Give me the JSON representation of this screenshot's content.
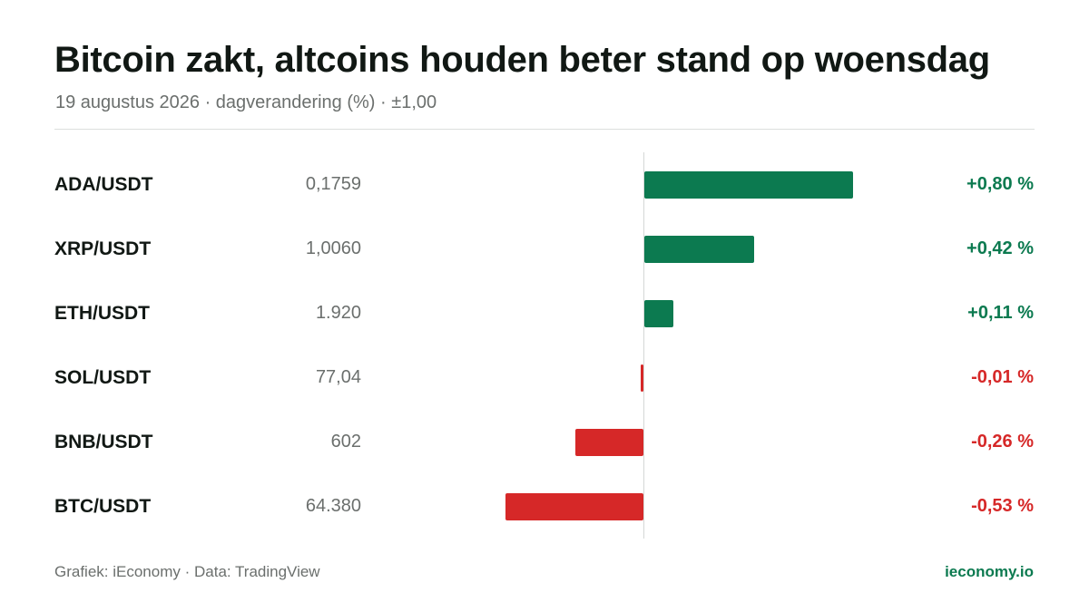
{
  "title": "Bitcoin zakt, altcoins houden beter stand op woensdag",
  "subtitle": "19 augustus 2026 · dagverandering (%) · ±1,00",
  "footer": {
    "credit": "Grafiek: iEconomy · Data: TradingView",
    "site": "ieconomy.io"
  },
  "colors": {
    "positive": "#0c7a50",
    "negative": "#d62828"
  },
  "chart_data": {
    "type": "bar",
    "orientation": "horizontal",
    "title": "Bitcoin zakt, altcoins houden beter stand op woensdag",
    "subtitle": "19 augustus 2026 · dagverandering (%) · ±1,00",
    "xlim": [
      -1.0,
      1.0
    ],
    "grid": false,
    "categories": [
      "ADA/USDT",
      "XRP/USDT",
      "ETH/USDT",
      "SOL/USDT",
      "BNB/USDT",
      "BTC/USDT"
    ],
    "prices": [
      "0,1759",
      "1,0060",
      "1.920",
      "77,04",
      "602",
      "64.380"
    ],
    "values": [
      0.8,
      0.42,
      0.11,
      -0.01,
      -0.26,
      -0.53
    ],
    "value_labels": [
      "+0,80 %",
      "+0,42 %",
      "+0,11 %",
      "-0,01 %",
      "-0,26 %",
      "-0,53 %"
    ]
  }
}
